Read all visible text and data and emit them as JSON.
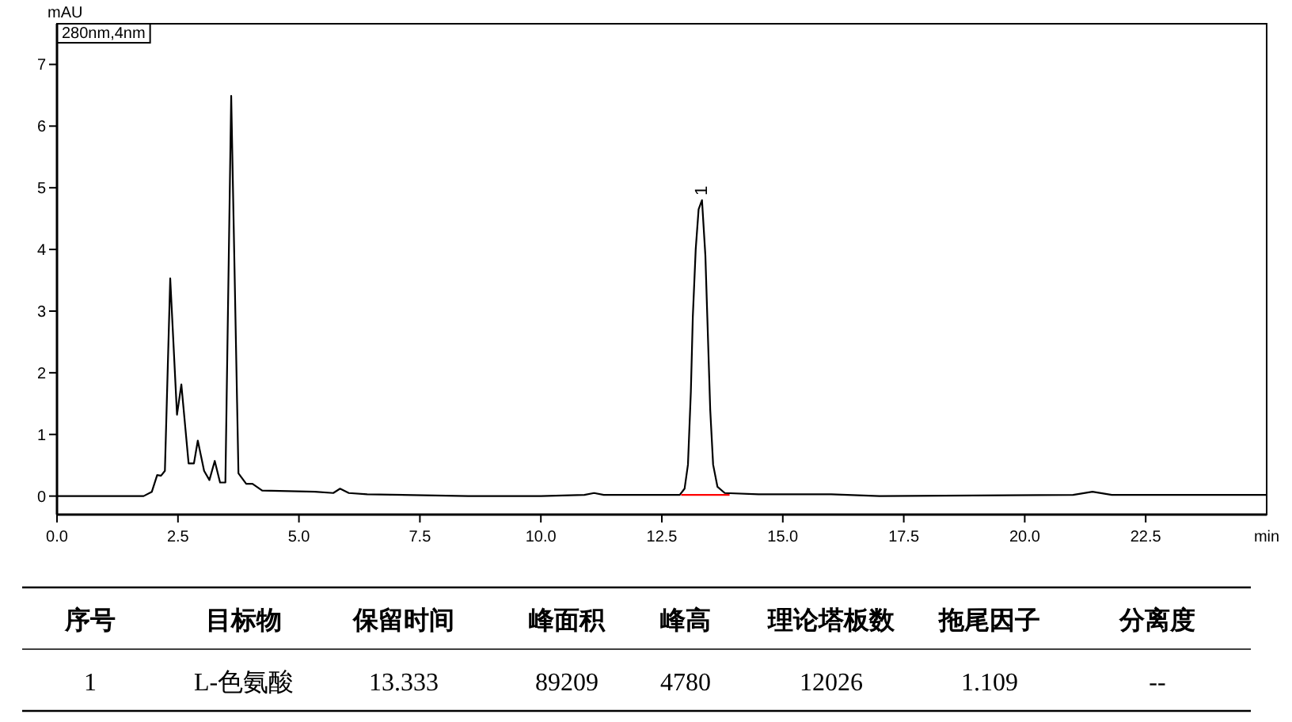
{
  "chart_data": {
    "type": "line",
    "xlabel": "min",
    "ylabel": "mAU",
    "xlim": [
      0,
      25
    ],
    "ylim": [
      -0.3,
      7.66
    ],
    "xticks": [
      {
        "value": 0,
        "label": "0.0"
      },
      {
        "value": 2.5,
        "label": "2.5"
      },
      {
        "value": 5,
        "label": "5.0"
      },
      {
        "value": 7.5,
        "label": "7.5"
      },
      {
        "value": 10,
        "label": "10.0"
      },
      {
        "value": 12.5,
        "label": "12.5"
      },
      {
        "value": 15,
        "label": "15.0"
      },
      {
        "value": 17.5,
        "label": "17.5"
      },
      {
        "value": 20,
        "label": "20.0"
      },
      {
        "value": 22.5,
        "label": "22.5"
      }
    ],
    "yticks": [
      0,
      1,
      2,
      3,
      4,
      5,
      6,
      7
    ],
    "grid": false,
    "marker": "none",
    "line_style": "solid",
    "series": [
      {
        "color": "#000000",
        "x": [
          0,
          1.79,
          1.96,
          2.07,
          2.15,
          2.23,
          2.34,
          2.48,
          2.57,
          2.72,
          2.83,
          2.91,
          3.04,
          3.15,
          3.26,
          3.37,
          3.48,
          3.6,
          3.75,
          3.91,
          4.04,
          4.24,
          5.33,
          5.71,
          5.85,
          6.03,
          6.41,
          8.5,
          10,
          10.9,
          11.1,
          11.3,
          12.87,
          12.97,
          13.04,
          13.1,
          13.14,
          13.2,
          13.26,
          13.33,
          13.4,
          13.44,
          13.5,
          13.56,
          13.65,
          13.8,
          14.5,
          16,
          17,
          21,
          21.4,
          21.8,
          25
        ],
        "values": [
          0,
          0,
          0.07,
          0.34,
          0.33,
          0.41,
          3.53,
          1.32,
          1.81,
          0.53,
          0.53,
          0.9,
          0.41,
          0.26,
          0.57,
          0.22,
          0.22,
          6.49,
          0.37,
          0.2,
          0.2,
          0.09,
          0.07,
          0.05,
          0.12,
          0.05,
          0.03,
          0.0,
          0.0,
          0.02,
          0.05,
          0.02,
          0.02,
          0.12,
          0.51,
          1.7,
          2.9,
          4.0,
          4.65,
          4.8,
          3.9,
          2.9,
          1.4,
          0.51,
          0.15,
          0.05,
          0.03,
          0.03,
          0.0,
          0.02,
          0.07,
          0.02,
          0.02
        ]
      },
      {
        "color": "#ff0000",
        "x": [
          12.9,
          13.9
        ],
        "values": [
          0.02,
          0.02
        ]
      }
    ],
    "annotations": [
      "280nm,4nm",
      {
        "text": "1",
        "x": 13.333,
        "y": 4.8
      },
      "序号",
      "目标物",
      "保留时间",
      "峰面积",
      "峰高",
      "理论塔板数",
      "拖尾因子",
      "分离度",
      "1",
      "L-色氨酸",
      "13.333",
      "89209",
      "4780",
      "12026",
      "1.109",
      "--"
    ]
  }
}
